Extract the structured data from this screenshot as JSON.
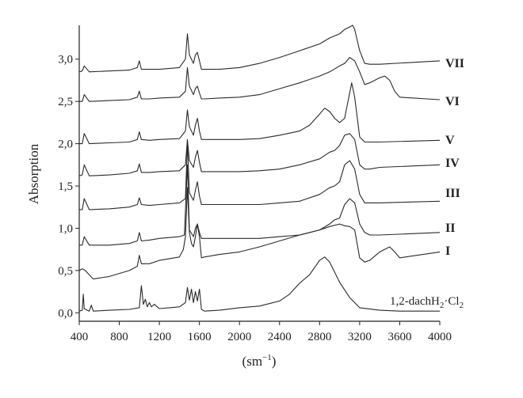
{
  "chart_data": {
    "type": "line",
    "title": "",
    "xlabel_main": "(sm",
    "xlabel_sup": "−1",
    "xlabel_close": ")",
    "ylabel": "Absorption",
    "xlim": [
      400,
      4000
    ],
    "ylim": [
      -0.1,
      3.4
    ],
    "x_ticks": [
      400,
      800,
      1200,
      1600,
      2000,
      2400,
      2800,
      3200,
      3600,
      4000
    ],
    "x_tick_labels": [
      "400",
      "800",
      "1200",
      "1600",
      "2000",
      "2400",
      "2800",
      "3200",
      "3600",
      "4000"
    ],
    "y_ticks": [
      0.0,
      0.5,
      1.0,
      1.5,
      2.0,
      2.5,
      3.0
    ],
    "y_tick_labels": [
      "0,0",
      "0,5",
      "1,0",
      "1,5",
      "2,0",
      "2,5",
      "3,0"
    ],
    "grid": false,
    "line_color": "#2a2a2a",
    "series": [
      {
        "name": "1,2-dachH₂·Cl₂",
        "label_main": "1,2-dachH",
        "label_sub1": "2",
        "label_mid": "·Cl",
        "label_sub2": "2",
        "x": [
          400,
          430,
          440,
          450,
          480,
          500,
          520,
          540,
          700,
          900,
          1000,
          1020,
          1040,
          1060,
          1080,
          1100,
          1120,
          1150,
          1200,
          1300,
          1400,
          1460,
          1480,
          1500,
          1520,
          1540,
          1560,
          1580,
          1600,
          1620,
          1650,
          1800,
          2000,
          2200,
          2400,
          2500,
          2600,
          2700,
          2800,
          2850,
          2900,
          2950,
          3000,
          3100,
          3200,
          3400,
          3600,
          4000
        ],
        "y": [
          0.02,
          0.03,
          0.22,
          0.05,
          0.03,
          0.02,
          0.09,
          0.02,
          0.03,
          0.04,
          0.06,
          0.32,
          0.1,
          0.16,
          0.07,
          0.12,
          0.07,
          0.1,
          0.05,
          0.06,
          0.07,
          0.12,
          0.3,
          0.15,
          0.28,
          0.12,
          0.25,
          0.14,
          0.28,
          0.04,
          0.02,
          0.03,
          0.06,
          0.08,
          0.14,
          0.22,
          0.35,
          0.45,
          0.62,
          0.66,
          0.6,
          0.48,
          0.36,
          0.18,
          0.06,
          0.03,
          0.02,
          0.02
        ]
      },
      {
        "name": "I",
        "x": [
          400,
          430,
          460,
          500,
          540,
          700,
          900,
          980,
          1000,
          1020,
          1100,
          1200,
          1300,
          1400,
          1440,
          1460,
          1480,
          1500,
          1520,
          1540,
          1560,
          1580,
          1600,
          1620,
          1650,
          1800,
          2000,
          2200,
          2400,
          2600,
          2800,
          2900,
          3000,
          3050,
          3100,
          3150,
          3200,
          3250,
          3300,
          3400,
          3500,
          3550,
          3600,
          4000
        ],
        "y": [
          0.5,
          0.52,
          0.5,
          0.45,
          0.4,
          0.43,
          0.5,
          0.55,
          0.68,
          0.58,
          0.58,
          0.62,
          0.64,
          0.66,
          0.75,
          0.9,
          1.48,
          0.95,
          0.82,
          0.78,
          0.9,
          1.05,
          0.9,
          0.65,
          0.66,
          0.69,
          0.72,
          0.78,
          0.85,
          0.92,
          0.98,
          1.02,
          1.05,
          1.03,
          1.02,
          0.98,
          0.65,
          0.6,
          0.62,
          0.72,
          0.78,
          0.72,
          0.65,
          0.72
        ]
      },
      {
        "name": "II",
        "x": [
          400,
          430,
          450,
          500,
          700,
          900,
          980,
          1000,
          1020,
          1100,
          1200,
          1400,
          1450,
          1480,
          1500,
          1540,
          1560,
          1580,
          1600,
          1620,
          1650,
          1800,
          2000,
          2200,
          2400,
          2600,
          2800,
          2900,
          2950,
          3000,
          3050,
          3100,
          3150,
          3200,
          3250,
          3300,
          3400,
          4000
        ],
        "y": [
          0.8,
          0.8,
          0.9,
          0.8,
          0.8,
          0.82,
          0.85,
          0.95,
          0.85,
          0.86,
          0.88,
          0.9,
          0.92,
          1.75,
          0.98,
          0.9,
          1.0,
          1.05,
          0.95,
          0.88,
          0.88,
          0.88,
          0.88,
          0.88,
          0.9,
          0.92,
          0.98,
          1.05,
          1.1,
          1.12,
          1.28,
          1.35,
          1.3,
          1.05,
          0.95,
          0.92,
          0.92,
          0.95
        ]
      },
      {
        "name": "III",
        "x": [
          400,
          430,
          450,
          500,
          700,
          900,
          980,
          1000,
          1020,
          1100,
          1200,
          1400,
          1460,
          1480,
          1500,
          1540,
          1560,
          1580,
          1600,
          1620,
          1650,
          1800,
          2000,
          2200,
          2400,
          2600,
          2800,
          2900,
          2950,
          3000,
          3050,
          3100,
          3150,
          3200,
          3250,
          3300,
          3400,
          4000
        ],
        "y": [
          1.22,
          1.22,
          1.35,
          1.22,
          1.23,
          1.25,
          1.28,
          1.36,
          1.28,
          1.27,
          1.28,
          1.3,
          1.35,
          2.0,
          1.42,
          1.33,
          1.45,
          1.55,
          1.38,
          1.28,
          1.28,
          1.28,
          1.28,
          1.28,
          1.3,
          1.32,
          1.4,
          1.48,
          1.5,
          1.55,
          1.75,
          1.8,
          1.7,
          1.4,
          1.3,
          1.3,
          1.3,
          1.32
        ]
      },
      {
        "name": "IV",
        "x": [
          400,
          430,
          450,
          500,
          700,
          900,
          980,
          1000,
          1020,
          1100,
          1200,
          1400,
          1460,
          1480,
          1500,
          1540,
          1560,
          1580,
          1600,
          1620,
          1650,
          1800,
          2000,
          2200,
          2400,
          2600,
          2800,
          2900,
          2950,
          3000,
          3050,
          3100,
          3150,
          3200,
          3250,
          3300,
          3400,
          4000
        ],
        "y": [
          1.62,
          1.63,
          1.75,
          1.62,
          1.63,
          1.65,
          1.68,
          1.76,
          1.66,
          1.66,
          1.67,
          1.68,
          1.75,
          2.05,
          1.8,
          1.72,
          1.84,
          1.92,
          1.78,
          1.67,
          1.67,
          1.67,
          1.67,
          1.68,
          1.7,
          1.75,
          1.82,
          1.9,
          1.92,
          1.98,
          2.1,
          2.12,
          2.05,
          1.75,
          1.7,
          1.7,
          1.72,
          1.75
        ]
      },
      {
        "name": "V",
        "x": [
          400,
          430,
          450,
          500,
          700,
          900,
          980,
          1000,
          1020,
          1100,
          1200,
          1400,
          1460,
          1480,
          1500,
          1540,
          1560,
          1580,
          1600,
          1620,
          1650,
          1800,
          2000,
          2200,
          2400,
          2600,
          2700,
          2800,
          2850,
          2900,
          2950,
          3000,
          3050,
          3100,
          3120,
          3150,
          3200,
          3250,
          3400,
          4000
        ],
        "y": [
          2.0,
          2.0,
          2.12,
          2.0,
          2.01,
          2.02,
          2.05,
          2.14,
          2.05,
          2.04,
          2.05,
          2.06,
          2.15,
          2.4,
          2.2,
          2.1,
          2.22,
          2.3,
          2.15,
          2.05,
          2.05,
          2.05,
          2.05,
          2.06,
          2.1,
          2.15,
          2.22,
          2.35,
          2.42,
          2.38,
          2.3,
          2.25,
          2.3,
          2.6,
          2.72,
          2.55,
          2.08,
          2.02,
          2.02,
          2.04
        ]
      },
      {
        "name": "VI",
        "x": [
          400,
          430,
          450,
          500,
          700,
          900,
          980,
          1000,
          1020,
          1100,
          1200,
          1400,
          1460,
          1480,
          1500,
          1540,
          1560,
          1580,
          1600,
          1620,
          1650,
          1800,
          2000,
          2200,
          2400,
          2600,
          2800,
          2900,
          3000,
          3050,
          3100,
          3150,
          3200,
          3250,
          3300,
          3400,
          3450,
          3500,
          3550,
          3600,
          4000
        ],
        "y": [
          2.5,
          2.5,
          2.58,
          2.5,
          2.51,
          2.52,
          2.55,
          2.62,
          2.53,
          2.53,
          2.54,
          2.55,
          2.62,
          2.9,
          2.68,
          2.58,
          2.65,
          2.68,
          2.6,
          2.53,
          2.53,
          2.54,
          2.55,
          2.58,
          2.65,
          2.72,
          2.8,
          2.85,
          2.92,
          2.95,
          3.02,
          2.98,
          2.85,
          2.7,
          2.72,
          2.78,
          2.8,
          2.75,
          2.62,
          2.55,
          2.52
        ]
      },
      {
        "name": "VII",
        "x": [
          400,
          430,
          450,
          500,
          700,
          900,
          980,
          1000,
          1020,
          1100,
          1200,
          1400,
          1460,
          1480,
          1500,
          1540,
          1560,
          1580,
          1600,
          1620,
          1650,
          1800,
          2000,
          2200,
          2400,
          2600,
          2800,
          2900,
          3000,
          3050,
          3100,
          3130,
          3150,
          3200,
          3250,
          3300,
          3400,
          4000
        ],
        "y": [
          2.85,
          2.86,
          2.92,
          2.85,
          2.86,
          2.87,
          2.9,
          2.98,
          2.88,
          2.88,
          2.88,
          2.9,
          3.0,
          3.3,
          3.05,
          2.95,
          3.05,
          3.08,
          2.98,
          2.88,
          2.88,
          2.88,
          2.9,
          2.95,
          3.02,
          3.1,
          3.18,
          3.25,
          3.3,
          3.35,
          3.38,
          3.4,
          3.35,
          3.1,
          2.95,
          2.94,
          2.94,
          2.98
        ]
      }
    ]
  }
}
